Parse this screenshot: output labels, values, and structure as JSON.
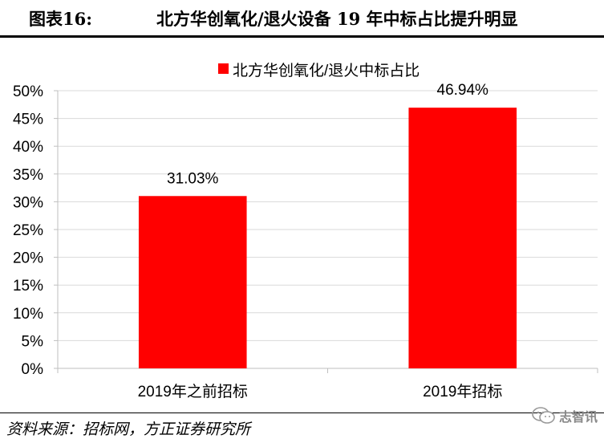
{
  "header": {
    "figure_number": "图表16:",
    "title": "北方华创氧化/退火设备 19 年中标占比提升明显"
  },
  "source_text": "资料来源：招标网，方正证券研究所",
  "watermark_text": "志智讯",
  "colors": {
    "bar": "#ff0000",
    "grid": "#d9d9d9",
    "axis": "#bfbfbf"
  },
  "chart_data": {
    "type": "bar",
    "categories": [
      "2019年之前招标",
      "2019年招标"
    ],
    "series": [
      {
        "name": "北方华创氧化/退火中标占比",
        "values": [
          31.03,
          46.94
        ]
      }
    ],
    "data_labels": [
      "31.03%",
      "46.94%"
    ],
    "ylim": [
      0,
      50
    ],
    "yticks": [
      0,
      5,
      10,
      15,
      20,
      25,
      30,
      35,
      40,
      45,
      50
    ],
    "ytick_labels": [
      "0%",
      "5%",
      "10%",
      "15%",
      "20%",
      "25%",
      "30%",
      "35%",
      "40%",
      "45%",
      "50%"
    ],
    "xlabel": "",
    "ylabel": "",
    "grid": true,
    "legend_position": "top-center"
  }
}
